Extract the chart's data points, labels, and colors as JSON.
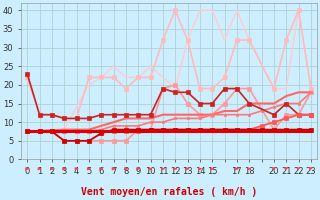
{
  "xlabel": "Vent moyen/en rafales ( km/h )",
  "background_color": "#cceeff",
  "grid_color": "#aacccc",
  "xlim": [
    -0.5,
    23.5
  ],
  "ylim": [
    0,
    42
  ],
  "yticks": [
    0,
    5,
    10,
    15,
    20,
    25,
    30,
    35,
    40
  ],
  "xtick_labels": [
    "0",
    "1",
    "2",
    "3",
    "4",
    "5",
    "6",
    "7",
    "8",
    "9",
    "10",
    "11",
    "12",
    "13",
    "14",
    "15",
    "",
    "17",
    "18",
    "",
    "20",
    "21",
    "22",
    "23"
  ],
  "lines": [
    {
      "x": [
        0,
        1,
        2,
        3,
        4,
        5,
        6,
        7,
        8,
        9,
        10,
        11,
        12,
        13,
        14,
        15,
        16,
        17,
        18,
        19,
        20,
        21,
        22,
        23
      ],
      "y": [
        7.5,
        7.5,
        7.5,
        7.5,
        7.5,
        7.5,
        7.5,
        7.5,
        7.5,
        7.5,
        7.5,
        7.5,
        7.5,
        7.5,
        7.5,
        7.5,
        7.5,
        7.5,
        7.5,
        7.5,
        7.5,
        7.5,
        7.5,
        7.5
      ],
      "color": "#dd0000",
      "lw": 2.2,
      "marker": null,
      "zorder": 5
    },
    {
      "x": [
        0,
        1,
        2,
        3,
        4,
        5,
        6,
        7,
        8,
        9,
        10,
        11,
        12,
        13,
        14,
        15,
        16,
        17,
        18,
        19,
        20,
        21,
        22,
        23
      ],
      "y": [
        7.5,
        7.5,
        7.5,
        7.5,
        7.5,
        7.5,
        7.5,
        7.5,
        7.5,
        7.5,
        8,
        8,
        8,
        8,
        8,
        8,
        8,
        8,
        8,
        9,
        10,
        11,
        12,
        12
      ],
      "color": "#ff5555",
      "lw": 1.3,
      "marker": "s",
      "ms": 2.5,
      "zorder": 4
    },
    {
      "x": [
        0,
        1,
        2,
        3,
        4,
        5,
        6,
        7,
        8,
        9,
        10,
        11,
        12,
        13,
        14,
        15,
        16,
        17,
        18,
        19,
        20,
        21,
        22,
        23
      ],
      "y": [
        7.5,
        7.5,
        7.5,
        5,
        5,
        5,
        7,
        8,
        8,
        8,
        8,
        8,
        8,
        8,
        8,
        8,
        8,
        8,
        8,
        8,
        8,
        8,
        8,
        8
      ],
      "color": "#cc0000",
      "lw": 1.3,
      "marker": "s",
      "ms": 2.5,
      "zorder": 4
    },
    {
      "x": [
        0,
        1,
        2,
        3,
        4,
        5,
        6,
        7,
        8,
        9,
        10,
        11,
        12,
        13,
        14,
        15,
        16,
        17,
        18,
        19,
        20,
        21,
        22,
        23
      ],
      "y": [
        7.5,
        7.5,
        7.5,
        7.5,
        7.5,
        7.5,
        8,
        9,
        9,
        9,
        10,
        10,
        11,
        11,
        11,
        12,
        12,
        12,
        12,
        13,
        14,
        15,
        15,
        18
      ],
      "color": "#ff7777",
      "lw": 1.2,
      "marker": "s",
      "ms": 2.0,
      "zorder": 3
    },
    {
      "x": [
        0,
        1,
        2,
        3,
        4,
        5,
        6,
        7,
        8,
        9,
        10,
        11,
        12,
        13,
        14,
        15,
        16,
        17,
        18,
        20,
        21,
        22,
        23
      ],
      "y": [
        23,
        12,
        12,
        11,
        11,
        11,
        12,
        12,
        12,
        12,
        12,
        19,
        18,
        18,
        15,
        15,
        19,
        19,
        15,
        12,
        15,
        12,
        12
      ],
      "color": "#cc2222",
      "lw": 1.2,
      "marker": "s",
      "ms": 2.5,
      "zorder": 3
    },
    {
      "x": [
        0,
        1,
        2,
        3,
        4,
        5,
        6,
        7,
        8,
        9,
        10,
        11,
        12,
        13,
        14,
        15,
        16,
        17,
        18,
        20,
        21,
        22,
        23
      ],
      "y": [
        7.5,
        7.5,
        7.5,
        5,
        5,
        5,
        5,
        5,
        5,
        8,
        8,
        19,
        20,
        15,
        12,
        12,
        15,
        19,
        19,
        8,
        12,
        12,
        18
      ],
      "color": "#ff9999",
      "lw": 1.2,
      "marker": "s",
      "ms": 2.5,
      "zorder": 2
    },
    {
      "x": [
        0,
        1,
        2,
        3,
        4,
        5,
        6,
        7,
        8,
        9,
        10,
        11,
        12,
        13,
        14,
        15,
        16,
        17,
        18,
        20,
        21,
        22,
        23
      ],
      "y": [
        22,
        12,
        12,
        11,
        11,
        22,
        22,
        22,
        19,
        22,
        22,
        32,
        40,
        32,
        19,
        19,
        22,
        32,
        32,
        19,
        32,
        40,
        19
      ],
      "color": "#ffbbbb",
      "lw": 1.2,
      "marker": "s",
      "ms": 2.5,
      "zorder": 2
    },
    {
      "x": [
        0,
        3,
        5,
        6,
        7,
        8,
        9,
        10,
        11,
        12,
        13,
        14,
        15,
        16,
        17,
        18,
        20,
        21,
        22,
        23
      ],
      "y": [
        7.5,
        8,
        8,
        9,
        10,
        11,
        11,
        11,
        12,
        12,
        12,
        12,
        12,
        13,
        13,
        15,
        15,
        17,
        18,
        18
      ],
      "color": "#ff6666",
      "lw": 1.5,
      "marker": null,
      "zorder": 2
    },
    {
      "x": [
        0,
        3,
        5,
        6,
        7,
        8,
        9,
        10,
        11,
        12,
        13,
        14,
        15,
        16,
        17,
        18,
        20,
        21,
        22,
        23
      ],
      "y": [
        7.5,
        8,
        20,
        22,
        25,
        22,
        22,
        25,
        22,
        19,
        32,
        40,
        40,
        32,
        40,
        32,
        19,
        19,
        40,
        19
      ],
      "color": "#ffcccc",
      "lw": 1.0,
      "marker": null,
      "zorder": 1
    }
  ],
  "arrows": {
    "color": "#ff4444",
    "positions": [
      0,
      1,
      2,
      3,
      4,
      5,
      6,
      7,
      8,
      9,
      10,
      11,
      12,
      13,
      14,
      15,
      17,
      18,
      20,
      21,
      22,
      23
    ],
    "diagonal": [
      20,
      21,
      22,
      23
    ]
  }
}
